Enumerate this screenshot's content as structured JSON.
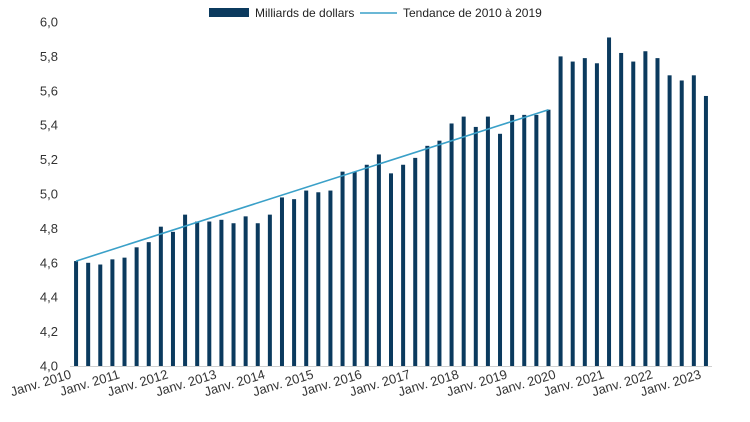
{
  "chart_data": {
    "type": "bar",
    "title": "",
    "xlabel": "",
    "ylabel": "",
    "ylim": [
      4.0,
      6.0
    ],
    "y_ticks": [
      "4,0",
      "4,2",
      "4,4",
      "4,6",
      "4,8",
      "5,0",
      "5,2",
      "5,4",
      "5,6",
      "5,8",
      "6,0"
    ],
    "x_tick_labels": [
      "Janv. 2010",
      "Janv. 2011",
      "Janv. 2012",
      "Janv. 2013",
      "Janv. 2014",
      "Janv. 2015",
      "Janv. 2016",
      "Janv. 2017",
      "Janv. 2018",
      "Janv. 2019",
      "Janv. 2020",
      "Janv. 2021",
      "Janv. 2022",
      "Janv. 2023"
    ],
    "x_start": "2010-Q1",
    "x_frequency": "quarterly",
    "legend_position": "top-center",
    "grid": false,
    "series": [
      {
        "name": "Milliards de dollars",
        "type": "bar",
        "color": "#0b3a5e",
        "values": [
          4.61,
          4.6,
          4.59,
          4.62,
          4.63,
          4.69,
          4.72,
          4.81,
          4.78,
          4.88,
          4.84,
          4.84,
          4.85,
          4.83,
          4.87,
          4.83,
          4.88,
          4.98,
          4.97,
          5.02,
          5.01,
          5.02,
          5.13,
          5.13,
          5.17,
          5.23,
          5.12,
          5.17,
          5.21,
          5.28,
          5.31,
          5.41,
          5.45,
          5.39,
          5.45,
          5.35,
          5.46,
          5.46,
          5.46,
          5.49,
          5.8,
          5.77,
          5.79,
          5.76,
          5.91,
          5.82,
          5.77,
          5.83,
          5.79,
          5.69,
          5.66,
          5.69,
          5.57
        ]
      },
      {
        "name": "Tendance de 2010 à 2019",
        "type": "line",
        "color": "#3aa0c8",
        "start": 4.61,
        "end": 5.49
      }
    ]
  }
}
